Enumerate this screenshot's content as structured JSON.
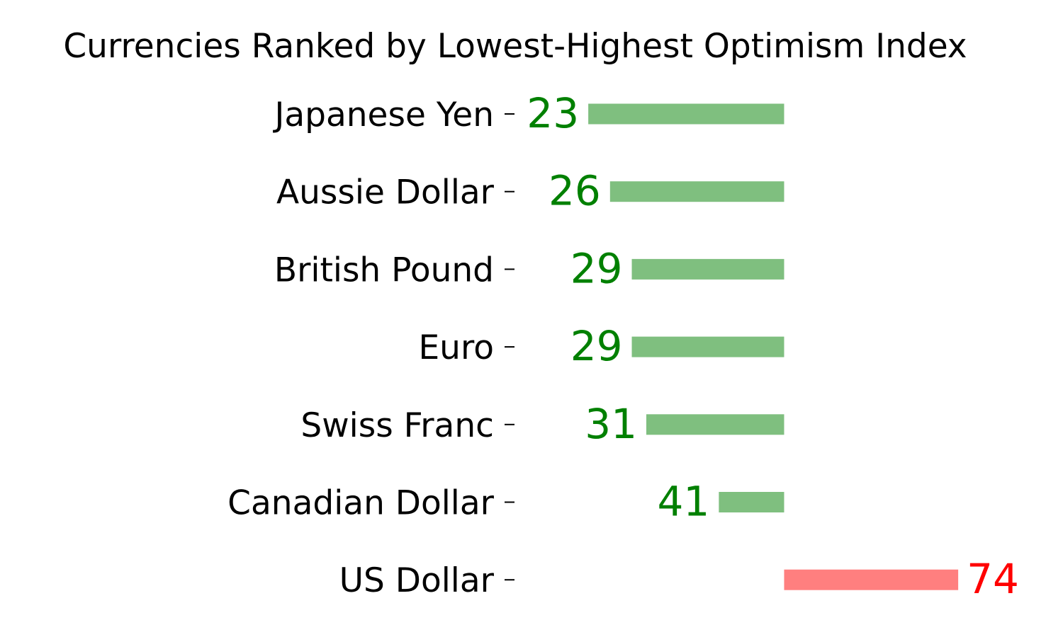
{
  "chart_data": {
    "type": "bar",
    "orientation": "horizontal",
    "title": "Currencies Ranked by Lowest-Highest Optimism Index",
    "xlabel": "",
    "ylabel": "",
    "baseline": 50,
    "xlim": [
      14,
      82
    ],
    "grid": false,
    "categories": [
      "Japanese Yen",
      "Aussie Dollar",
      "British Pound",
      "Euro",
      "Swiss Franc",
      "Canadian Dollar",
      "US Dollar"
    ],
    "values": [
      23,
      26,
      29,
      29,
      31,
      41,
      74
    ],
    "data_labels": [
      "23",
      "26",
      "29",
      "29",
      "31",
      "41",
      "74"
    ],
    "colors": {
      "below": "#008000",
      "above": "#ff0000",
      "bar_opacity": 0.5
    }
  }
}
